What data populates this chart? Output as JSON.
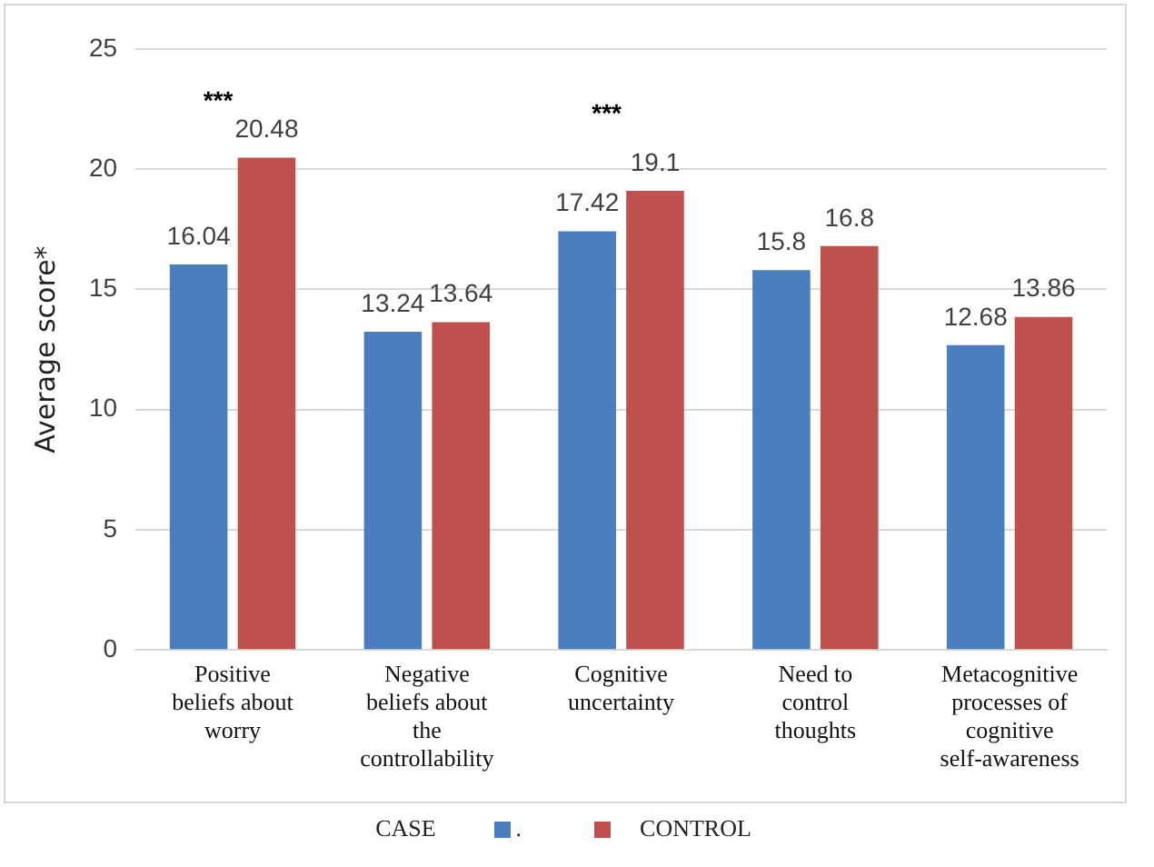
{
  "chart_data": {
    "type": "bar",
    "ylabel": "Average score*",
    "categories": [
      "Positive beliefs about worry",
      "Negative beliefs about the controllability",
      "Cognitive uncertainty",
      "Need to control thoughts",
      "Metacognitive processes of cognitive self-awareness"
    ],
    "series": [
      {
        "name": ".",
        "color": "#4a7ebf",
        "values": [
          16.04,
          13.24,
          17.42,
          15.8,
          12.68
        ]
      },
      {
        "name": "CONTROL",
        "color": "#c0504d",
        "values": [
          20.48,
          13.64,
          19.1,
          16.8,
          13.86
        ]
      }
    ],
    "ylim": [
      0,
      25
    ],
    "yticks": [
      0,
      5,
      10,
      15,
      20,
      25
    ],
    "grid": "y",
    "legend": "bottom",
    "data_labels": true,
    "annotations": [
      "***",
      "***",
      "CASE"
    ]
  }
}
